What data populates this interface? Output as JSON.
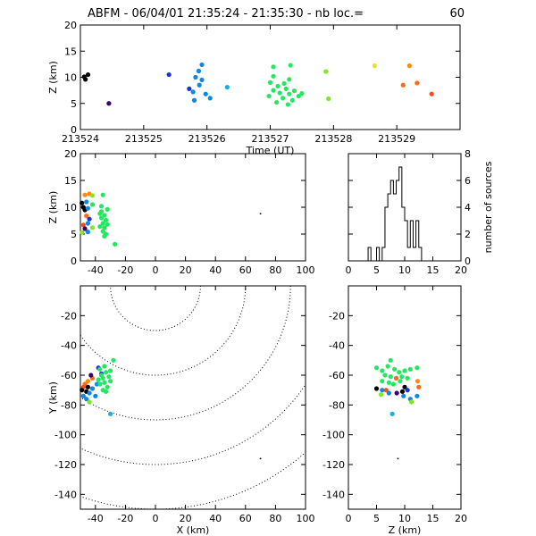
{
  "title": "ABFM - 06/04/01 21:35:24 - 21:35:30 - nb loc.=",
  "loc_count": "60",
  "chart_data": [
    {
      "type": "scatter",
      "panel": "time-height",
      "xlabel": "Time (UT)",
      "ylabel": "Z (km)",
      "xlim": [
        213524,
        213530
      ],
      "ylim": [
        0,
        20
      ],
      "xticks": [
        213524,
        213525,
        213526,
        213527,
        213528,
        213529
      ],
      "yticks": [
        0,
        5,
        10,
        15,
        20
      ],
      "points": [
        {
          "t": 213524.08,
          "z": 9.6,
          "color": "#000000"
        },
        {
          "t": 213524.12,
          "z": 10.5,
          "color": "#000000"
        },
        {
          "t": 213524.06,
          "z": 10.1,
          "color": "#000000"
        },
        {
          "t": 213524.45,
          "z": 5.0,
          "color": "#3d006a"
        },
        {
          "t": 213525.4,
          "z": 10.5,
          "color": "#1a33d6"
        },
        {
          "t": 213525.72,
          "z": 7.8,
          "color": "#1a33d6"
        },
        {
          "t": 213525.92,
          "z": 12.4,
          "color": "#0b88e6"
        },
        {
          "t": 213525.87,
          "z": 11.2,
          "color": "#0b88e6"
        },
        {
          "t": 213525.82,
          "z": 10.0,
          "color": "#0b88e6"
        },
        {
          "t": 213525.92,
          "z": 9.5,
          "color": "#0b88e6"
        },
        {
          "t": 213525.88,
          "z": 8.5,
          "color": "#0b88e6"
        },
        {
          "t": 213525.78,
          "z": 7.2,
          "color": "#0b88e6"
        },
        {
          "t": 213525.8,
          "z": 5.6,
          "color": "#0b88e6"
        },
        {
          "t": 213525.98,
          "z": 6.8,
          "color": "#0b88e6"
        },
        {
          "t": 213526.05,
          "z": 6.0,
          "color": "#0b88e6"
        },
        {
          "t": 213526.32,
          "z": 8.1,
          "color": "#12b0e6"
        },
        {
          "t": 213527.05,
          "z": 12.0,
          "color": "#22e860"
        },
        {
          "t": 213527.32,
          "z": 12.3,
          "color": "#22e860"
        },
        {
          "t": 213527.0,
          "z": 9.0,
          "color": "#22e860"
        },
        {
          "t": 213527.12,
          "z": 8.3,
          "color": "#22e860"
        },
        {
          "t": 213527.05,
          "z": 7.5,
          "color": "#22e860"
        },
        {
          "t": 213527.15,
          "z": 7.0,
          "color": "#22e860"
        },
        {
          "t": 213526.98,
          "z": 6.4,
          "color": "#22e860"
        },
        {
          "t": 213527.2,
          "z": 6.0,
          "color": "#22e860"
        },
        {
          "t": 213527.25,
          "z": 7.8,
          "color": "#22e860"
        },
        {
          "t": 213527.3,
          "z": 6.8,
          "color": "#22e860"
        },
        {
          "t": 213527.38,
          "z": 7.4,
          "color": "#22e860"
        },
        {
          "t": 213527.45,
          "z": 6.4,
          "color": "#22e860"
        },
        {
          "t": 213527.35,
          "z": 5.6,
          "color": "#22e860"
        },
        {
          "t": 213527.5,
          "z": 6.9,
          "color": "#22e860"
        },
        {
          "t": 213527.28,
          "z": 4.8,
          "color": "#22e860"
        },
        {
          "t": 213527.1,
          "z": 5.2,
          "color": "#22e860"
        },
        {
          "t": 213527.22,
          "z": 8.8,
          "color": "#22e860"
        },
        {
          "t": 213527.05,
          "z": 10.2,
          "color": "#22e860"
        },
        {
          "t": 213527.3,
          "z": 9.6,
          "color": "#22e860"
        },
        {
          "t": 213527.88,
          "z": 11.1,
          "color": "#7fe81f"
        },
        {
          "t": 213527.92,
          "z": 5.9,
          "color": "#7fe81f"
        },
        {
          "t": 213528.65,
          "z": 12.2,
          "color": "#e8e020"
        },
        {
          "t": 213529.2,
          "z": 12.2,
          "color": "#ff8a10"
        },
        {
          "t": 213529.1,
          "z": 8.5,
          "color": "#ff6a10"
        },
        {
          "t": 213529.32,
          "z": 8.9,
          "color": "#ff6a10"
        },
        {
          "t": 213529.55,
          "z": 6.8,
          "color": "#ff4a10"
        }
      ]
    },
    {
      "type": "scatter",
      "panel": "x-height",
      "ylabel": "Z (km)",
      "xlim": [
        -50,
        100
      ],
      "ylim": [
        0,
        20
      ],
      "xticks": [
        -40,
        -20,
        0,
        20,
        40,
        60,
        80,
        100
      ],
      "yticks": [
        0,
        5,
        10,
        15,
        20
      ],
      "points": [
        {
          "x": -47,
          "z": 12.3,
          "color": "#ff8a10"
        },
        {
          "x": -44,
          "z": 12.5,
          "color": "#ff8a10"
        },
        {
          "x": -46,
          "z": 11.0,
          "color": "#0b88e6"
        },
        {
          "x": -48,
          "z": 10.0,
          "color": "#000000"
        },
        {
          "x": -49,
          "z": 10.8,
          "color": "#000000"
        },
        {
          "x": -47,
          "z": 9.5,
          "color": "#000000"
        },
        {
          "x": -45,
          "z": 9.8,
          "color": "#0b88e6"
        },
        {
          "x": -46,
          "z": 8.4,
          "color": "#ff6a10"
        },
        {
          "x": -44,
          "z": 7.8,
          "color": "#1a33d6"
        },
        {
          "x": -45,
          "z": 7.0,
          "color": "#0b88e6"
        },
        {
          "x": -48,
          "z": 6.7,
          "color": "#ff4a10"
        },
        {
          "x": -47,
          "z": 6.0,
          "color": "#3d006a"
        },
        {
          "x": -45,
          "z": 5.4,
          "color": "#0b88e6"
        },
        {
          "x": -42,
          "z": 6.2,
          "color": "#7fe81f"
        },
        {
          "x": -49,
          "z": 5.3,
          "color": "#7fe81f"
        },
        {
          "x": -42,
          "z": 12.2,
          "color": "#7fe81f"
        },
        {
          "x": -42,
          "z": 10.5,
          "color": "#22e860"
        },
        {
          "x": -35,
          "z": 12.3,
          "color": "#22e860"
        },
        {
          "x": -36,
          "z": 9.2,
          "color": "#22e860"
        },
        {
          "x": -34,
          "z": 8.5,
          "color": "#22e860"
        },
        {
          "x": -36,
          "z": 8.0,
          "color": "#22e860"
        },
        {
          "x": -33,
          "z": 7.6,
          "color": "#22e860"
        },
        {
          "x": -35,
          "z": 7.0,
          "color": "#22e860"
        },
        {
          "x": -37,
          "z": 6.4,
          "color": "#22e860"
        },
        {
          "x": -34,
          "z": 6.2,
          "color": "#22e860"
        },
        {
          "x": -32,
          "z": 6.8,
          "color": "#22e860"
        },
        {
          "x": -35,
          "z": 5.5,
          "color": "#22e860"
        },
        {
          "x": -33,
          "z": 5.0,
          "color": "#22e860"
        },
        {
          "x": -34,
          "z": 4.6,
          "color": "#22e860"
        },
        {
          "x": -36,
          "z": 10.2,
          "color": "#22e860"
        },
        {
          "x": -32,
          "z": 9.6,
          "color": "#22e860"
        },
        {
          "x": -37,
          "z": 8.8,
          "color": "#22e860"
        },
        {
          "x": -27,
          "z": 3.1,
          "color": "#22e860"
        },
        {
          "x": 70,
          "z": 8.8,
          "color": "#000000",
          "size": "tiny"
        }
      ]
    },
    {
      "type": "histogram",
      "panel": "height-histogram",
      "ylabel": "number of sources",
      "xlim": [
        0,
        20
      ],
      "ylim": [
        0,
        8
      ],
      "xticks": [
        0,
        5,
        10,
        15,
        20
      ],
      "yticks": [
        0,
        2,
        4,
        6,
        8
      ],
      "bin_edges": [
        0,
        0.5,
        1,
        1.5,
        2,
        2.5,
        3,
        3.5,
        4,
        4.5,
        5,
        5.5,
        6,
        6.5,
        7,
        7.5,
        8,
        8.5,
        9,
        9.5,
        10,
        10.5,
        11,
        11.5,
        12,
        12.5,
        13,
        13.5,
        14,
        14.5,
        15,
        15.5,
        16,
        16.5,
        17,
        17.5,
        18,
        18.5,
        19,
        19.5,
        20
      ],
      "counts": [
        0,
        0,
        0,
        0,
        0,
        0,
        0,
        1,
        0,
        0,
        1,
        0,
        1,
        4,
        5,
        6,
        5,
        6,
        7,
        4,
        3,
        1,
        3,
        1,
        3,
        1,
        0,
        0,
        0,
        0,
        0,
        0,
        0,
        0,
        0,
        0,
        0,
        0,
        0,
        0
      ]
    },
    {
      "type": "scatter",
      "panel": "plan-view",
      "xlabel": "X (km)",
      "ylabel": "Y (km)",
      "xlim": [
        -50,
        100
      ],
      "ylim": [
        -150,
        0
      ],
      "xticks": [
        -40,
        -20,
        0,
        20,
        40,
        60,
        80,
        100
      ],
      "yticks": [
        -140,
        -120,
        -100,
        -80,
        -60,
        -40,
        -20
      ],
      "contour_radii_km": [
        30,
        60,
        90,
        120,
        150
      ],
      "contour_center": [
        0,
        0
      ],
      "points": [
        {
          "x": -45,
          "y": -64,
          "color": "#ff8a10"
        },
        {
          "x": -47,
          "y": -66,
          "color": "#ff6a10"
        },
        {
          "x": -42,
          "y": -62,
          "color": "#ff6a10"
        },
        {
          "x": -48,
          "y": -68,
          "color": "#ff4a10"
        },
        {
          "x": -46,
          "y": -71,
          "color": "#000000"
        },
        {
          "x": -49,
          "y": -70,
          "color": "#000000"
        },
        {
          "x": -45,
          "y": -68,
          "color": "#000000"
        },
        {
          "x": -44,
          "y": -72,
          "color": "#0b88e6"
        },
        {
          "x": -48,
          "y": -74,
          "color": "#0b88e6"
        },
        {
          "x": -42,
          "y": -69,
          "color": "#0b88e6"
        },
        {
          "x": -40,
          "y": -74,
          "color": "#0b88e6"
        },
        {
          "x": -46,
          "y": -76,
          "color": "#0b88e6"
        },
        {
          "x": -39,
          "y": -66,
          "color": "#0b88e6"
        },
        {
          "x": -43,
          "y": -60,
          "color": "#3d006a"
        },
        {
          "x": -38,
          "y": -55,
          "color": "#1a33d6"
        },
        {
          "x": -36,
          "y": -59,
          "color": "#1a33d6"
        },
        {
          "x": -44,
          "y": -78,
          "color": "#7fe81f"
        },
        {
          "x": -30,
          "y": -86,
          "color": "#12b0e6"
        },
        {
          "x": -37,
          "y": -56,
          "color": "#22e860"
        },
        {
          "x": -34,
          "y": -54,
          "color": "#22e860"
        },
        {
          "x": -28,
          "y": -50,
          "color": "#22e860"
        },
        {
          "x": -36,
          "y": -60,
          "color": "#22e860"
        },
        {
          "x": -33,
          "y": -58,
          "color": "#22e860"
        },
        {
          "x": -35,
          "y": -62,
          "color": "#22e860"
        },
        {
          "x": -31,
          "y": -61,
          "color": "#22e860"
        },
        {
          "x": -34,
          "y": -65,
          "color": "#22e860"
        },
        {
          "x": -30,
          "y": -64,
          "color": "#22e860"
        },
        {
          "x": -37,
          "y": -66,
          "color": "#22e860"
        },
        {
          "x": -32,
          "y": -68,
          "color": "#22e860"
        },
        {
          "x": -35,
          "y": -70,
          "color": "#22e860"
        },
        {
          "x": -38,
          "y": -63,
          "color": "#22e860"
        },
        {
          "x": -30,
          "y": -57,
          "color": "#22e860"
        },
        {
          "x": -33,
          "y": -71,
          "color": "#22e860"
        },
        {
          "x": 70,
          "y": -116,
          "color": "#000000",
          "size": "tiny"
        }
      ]
    },
    {
      "type": "scatter",
      "panel": "height-y",
      "xlabel": "Z (km)",
      "xlim": [
        0,
        20
      ],
      "ylim": [
        -150,
        0
      ],
      "xticks": [
        0,
        5,
        10,
        15,
        20
      ],
      "yticks": [
        -140,
        -120,
        -100,
        -80,
        -60,
        -40,
        -20
      ],
      "points": [
        {
          "z": 5.0,
          "y": -55,
          "color": "#22e860"
        },
        {
          "z": 6.0,
          "y": -57,
          "color": "#22e860"
        },
        {
          "z": 7.0,
          "y": -54,
          "color": "#22e860"
        },
        {
          "z": 8.2,
          "y": -56,
          "color": "#22e860"
        },
        {
          "z": 9.0,
          "y": -58,
          "color": "#22e860"
        },
        {
          "z": 10.0,
          "y": -57,
          "color": "#22e860"
        },
        {
          "z": 11.0,
          "y": -56,
          "color": "#22e860"
        },
        {
          "z": 12.2,
          "y": -55,
          "color": "#22e860"
        },
        {
          "z": 6.5,
          "y": -60,
          "color": "#22e860"
        },
        {
          "z": 7.5,
          "y": -61,
          "color": "#22e860"
        },
        {
          "z": 8.5,
          "y": -62,
          "color": "#22e860"
        },
        {
          "z": 9.5,
          "y": -61,
          "color": "#22e860"
        },
        {
          "z": 10.5,
          "y": -62,
          "color": "#22e860"
        },
        {
          "z": 6.0,
          "y": -64,
          "color": "#22e860"
        },
        {
          "z": 7.2,
          "y": -65,
          "color": "#22e860"
        },
        {
          "z": 8.0,
          "y": -66,
          "color": "#22e860"
        },
        {
          "z": 9.2,
          "y": -64,
          "color": "#22e860"
        },
        {
          "z": 7.5,
          "y": -50,
          "color": "#22e860"
        },
        {
          "z": 12.3,
          "y": -64,
          "color": "#ff8a10"
        },
        {
          "z": 12.5,
          "y": -68,
          "color": "#ff6a10"
        },
        {
          "z": 8.5,
          "y": -62,
          "color": "#ff6a10"
        },
        {
          "z": 6.7,
          "y": -70,
          "color": "#ff4a10"
        },
        {
          "z": 10.0,
          "y": -68,
          "color": "#000000"
        },
        {
          "z": 5.0,
          "y": -69,
          "color": "#000000"
        },
        {
          "z": 9.6,
          "y": -71,
          "color": "#000000"
        },
        {
          "z": 6.0,
          "y": -70,
          "color": "#0b88e6"
        },
        {
          "z": 7.2,
          "y": -72,
          "color": "#0b88e6"
        },
        {
          "z": 9.8,
          "y": -74,
          "color": "#0b88e6"
        },
        {
          "z": 11.0,
          "y": -76,
          "color": "#0b88e6"
        },
        {
          "z": 12.2,
          "y": -74,
          "color": "#0b88e6"
        },
        {
          "z": 8.6,
          "y": -72,
          "color": "#3d006a"
        },
        {
          "z": 10.5,
          "y": -70,
          "color": "#1a33d6"
        },
        {
          "z": 7.8,
          "y": -86,
          "color": "#12b0e6"
        },
        {
          "z": 11.2,
          "y": -78,
          "color": "#7fe81f"
        },
        {
          "z": 5.8,
          "y": -73,
          "color": "#7fe81f"
        },
        {
          "z": 8.8,
          "y": -116,
          "color": "#000000",
          "size": "tiny"
        }
      ]
    }
  ]
}
